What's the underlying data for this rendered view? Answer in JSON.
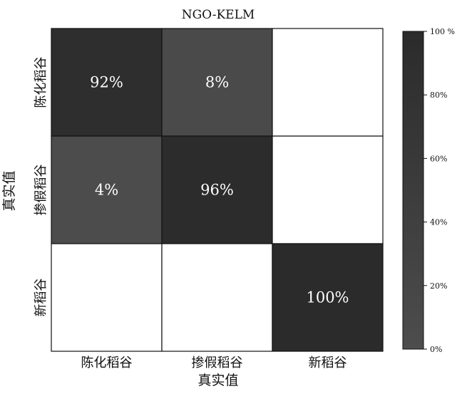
{
  "chart_data": {
    "type": "heatmap",
    "title": "NGO-KELM",
    "xlabel": "真实值",
    "ylabel": "真实值",
    "x_categories": [
      "陈化稻谷",
      "掺假稻谷",
      "新稻谷"
    ],
    "y_categories": [
      "陈化稻谷",
      "掺假稻谷",
      "新稻谷"
    ],
    "values": [
      [
        92,
        8,
        0
      ],
      [
        4,
        96,
        0
      ],
      [
        0,
        0,
        100
      ]
    ],
    "cell_labels": [
      [
        "92%",
        "8%",
        ""
      ],
      [
        "4%",
        "96%",
        ""
      ],
      [
        "",
        "",
        "100%"
      ]
    ],
    "colorbar": {
      "range": [
        0,
        100
      ],
      "ticks": [
        "0%",
        "20%",
        "40%",
        "60%",
        "80%",
        "100 %"
      ]
    },
    "colors": {
      "max": "#2b2b2b",
      "min": "#4d4d4d",
      "empty": "#ffffff",
      "label_text": "#ffffff",
      "axis_text": "#111111"
    },
    "grid": false
  }
}
